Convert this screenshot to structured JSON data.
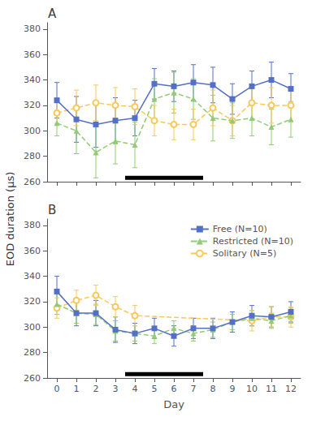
{
  "chart_data": [
    {
      "type": "line",
      "title": "A",
      "ylabel": "EOD duration (μs)",
      "x": [
        0,
        1,
        2,
        3,
        4,
        5,
        6,
        7,
        8,
        9,
        10,
        11,
        12
      ],
      "xlim": [
        -0.5,
        12.5
      ],
      "xticks": [
        0,
        1,
        2,
        3,
        4,
        5,
        6,
        7,
        8,
        9,
        10,
        11,
        12
      ],
      "ylim": [
        260,
        385
      ],
      "yticks": [
        260,
        280,
        300,
        320,
        340,
        360,
        380
      ],
      "grid": false,
      "tick_labels": "y",
      "bar": {
        "x": [
          3.5,
          7.5
        ],
        "y": 263,
        "color": "#000000"
      },
      "series": [
        {
          "name": "Free (N=10)",
          "marker": "square",
          "line_style": "solid",
          "values": [
            324,
            309,
            305,
            308,
            310,
            337,
            335,
            338,
            336,
            325,
            335,
            340,
            333
          ],
          "errors": [
            14,
            18,
            18,
            18,
            14,
            12,
            12,
            14,
            14,
            12,
            12,
            14,
            12
          ]
        },
        {
          "name": "Restricted (N=10)",
          "marker": "triangle",
          "line_style": "dashed",
          "values": [
            306,
            300,
            283,
            292,
            289,
            325,
            330,
            325,
            310,
            308,
            310,
            303,
            309
          ],
          "errors": [
            10,
            18,
            20,
            18,
            18,
            16,
            16,
            16,
            18,
            14,
            14,
            14,
            14
          ]
        },
        {
          "name": "Solitary (N=5)",
          "marker": "circle",
          "line_style": "dashed",
          "values": [
            314,
            318,
            322,
            320,
            319,
            308,
            305,
            305,
            318,
            308,
            322,
            320,
            320
          ],
          "errors": [
            8,
            14,
            14,
            14,
            14,
            12,
            12,
            12,
            14,
            12,
            14,
            14,
            12
          ]
        }
      ]
    },
    {
      "type": "line",
      "title": "B",
      "xlabel": "Day",
      "x": [
        0,
        1,
        2,
        3,
        4,
        5,
        6,
        7,
        8,
        9,
        10,
        11,
        12
      ],
      "xlim": [
        -0.5,
        12.5
      ],
      "xticks": [
        0,
        1,
        2,
        3,
        4,
        5,
        6,
        7,
        8,
        9,
        10,
        11,
        12
      ],
      "ylim": [
        260,
        385
      ],
      "yticks": [
        260,
        280,
        300,
        320,
        340,
        360,
        380
      ],
      "grid": false,
      "legend": "upper right",
      "bar": {
        "x": [
          3.5,
          7.5
        ],
        "y": 263,
        "color": "#000000"
      },
      "series": [
        {
          "name": "Free (N=10)",
          "marker": "square",
          "line_style": "solid",
          "values": [
            328,
            311,
            311,
            298,
            295,
            299,
            293,
            299,
            299,
            304,
            309,
            308,
            312
          ],
          "errors": [
            12,
            10,
            10,
            10,
            8,
            8,
            8,
            8,
            8,
            8,
            8,
            8,
            8
          ]
        },
        {
          "name": "Restricted (N=10)",
          "marker": "triangle",
          "line_style": "dashed",
          "values": [
            318,
            311,
            310,
            297,
            295,
            293,
            299,
            295,
            298,
            304,
            307,
            305,
            309
          ],
          "errors": [
            8,
            8,
            8,
            8,
            6,
            6,
            6,
            6,
            6,
            6,
            6,
            6,
            6
          ]
        },
        {
          "name": "Solitary (N=5)",
          "marker": "circle",
          "line_style": "dashed",
          "values": [
            315,
            321,
            325,
            316,
            309,
            null,
            null,
            null,
            null,
            null,
            305,
            308,
            308
          ],
          "errors": [
            8,
            8,
            8,
            8,
            8,
            null,
            null,
            null,
            null,
            null,
            8,
            8,
            8
          ]
        }
      ]
    }
  ]
}
